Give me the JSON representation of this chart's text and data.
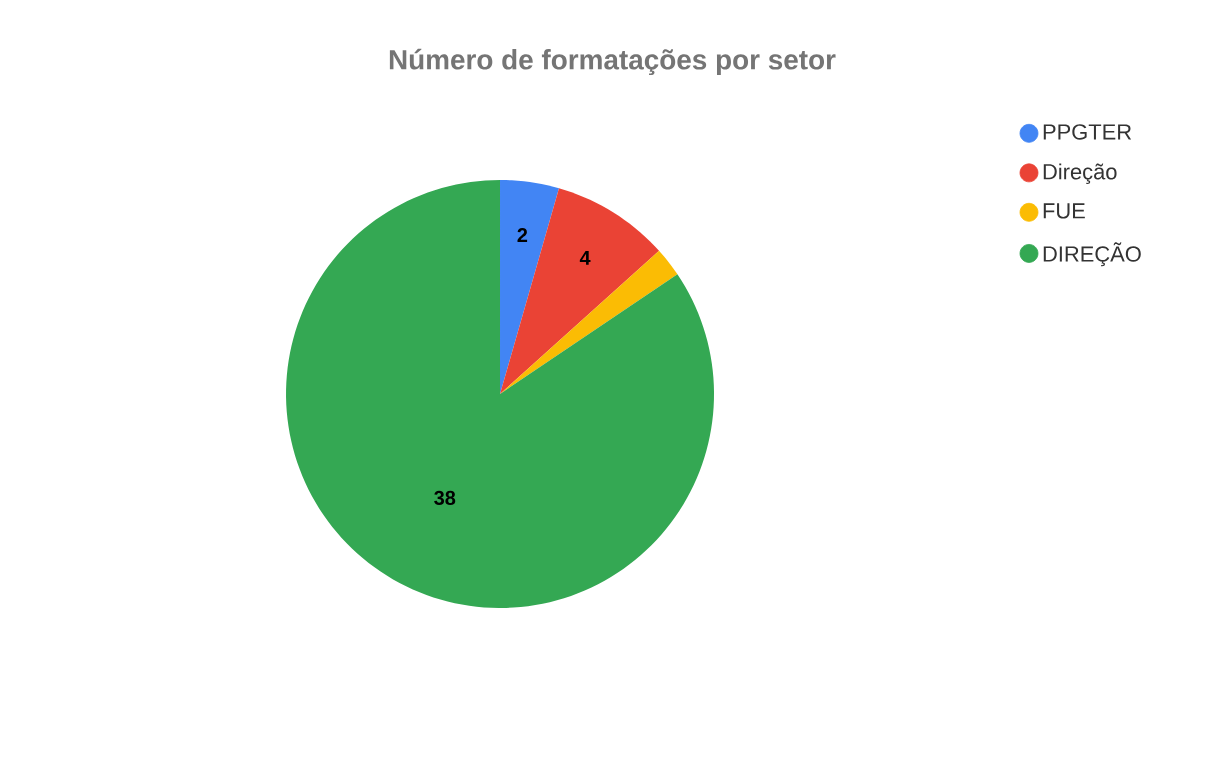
{
  "chart_data": {
    "type": "pie",
    "title": "Número de formatações por setor",
    "categories": [
      "PPGTER",
      "Direção",
      "FUE",
      "DIREÇÃO"
    ],
    "values": [
      2,
      4,
      1,
      38
    ],
    "colors": [
      "#4285f4",
      "#ea4335",
      "#fbbc04",
      "#34a853"
    ],
    "value_labels": [
      "2",
      "4",
      null,
      "38"
    ],
    "legend": "right"
  }
}
